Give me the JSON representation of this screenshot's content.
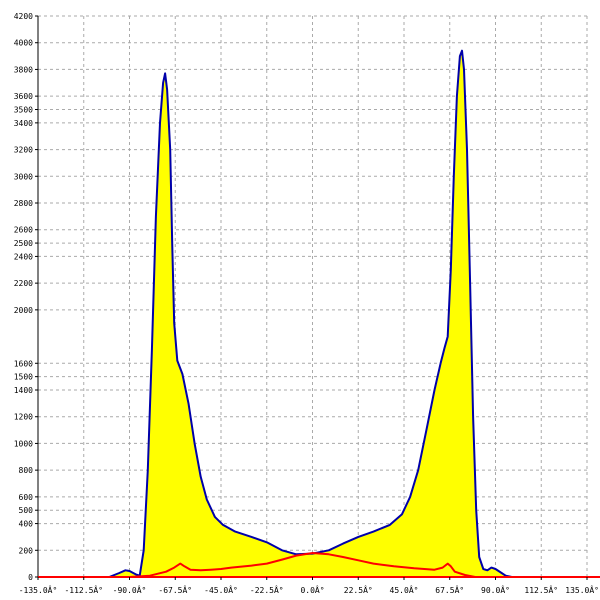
{
  "chart_data": {
    "type": "area",
    "title": "",
    "xlabel": "",
    "ylabel": "",
    "xlim": [
      -135,
      135
    ],
    "ylim": [
      0,
      4200
    ],
    "grid": true,
    "x_ticks": [
      -135,
      -112.5,
      -90,
      -67.5,
      -45,
      -22.5,
      0,
      22.5,
      45,
      67.5,
      90,
      112.5,
      135
    ],
    "x_tick_labels": [
      "-135.0Â°",
      "-112.5Â°",
      "-90.0Â°",
      "-67.5Â°",
      "-45.0Â°",
      "-22.5Â°",
      "0.0Â°",
      "22.5Â°",
      "45.0Â°",
      "67.5Â°",
      "90.0Â°",
      "112.5Â°",
      "135.0Â°"
    ],
    "y_ticks": [
      0,
      200,
      400,
      500,
      600,
      800,
      1000,
      1200,
      1400,
      1500,
      1600,
      2000,
      2200,
      2400,
      2500,
      2600,
      2800,
      3000,
      3200,
      3400,
      3500,
      3600,
      3800,
      4000,
      4200
    ],
    "series": [
      {
        "color": "#0000aa",
        "fill": "#ffff00",
        "points": [
          [
            -100,
            0
          ],
          [
            -95,
            30
          ],
          [
            -92,
            50
          ],
          [
            -90,
            45
          ],
          [
            -87,
            20
          ],
          [
            -85,
            10
          ],
          [
            -83,
            200
          ],
          [
            -81,
            800
          ],
          [
            -79,
            1700
          ],
          [
            -77,
            2700
          ],
          [
            -75,
            3400
          ],
          [
            -73.5,
            3700
          ],
          [
            -72.5,
            3770
          ],
          [
            -71.5,
            3650
          ],
          [
            -70,
            3200
          ],
          [
            -69,
            2500
          ],
          [
            -68,
            1900
          ],
          [
            -66.5,
            1620
          ],
          [
            -64,
            1520
          ],
          [
            -61,
            1300
          ],
          [
            -58,
            1000
          ],
          [
            -55,
            750
          ],
          [
            -52,
            580
          ],
          [
            -48,
            450
          ],
          [
            -44,
            390
          ],
          [
            -38,
            340
          ],
          [
            -30,
            300
          ],
          [
            -22.5,
            260
          ],
          [
            -15,
            200
          ],
          [
            -8,
            170
          ],
          [
            0,
            175
          ],
          [
            8,
            200
          ],
          [
            15,
            250
          ],
          [
            22.5,
            300
          ],
          [
            30,
            340
          ],
          [
            38,
            390
          ],
          [
            44,
            470
          ],
          [
            48,
            600
          ],
          [
            52,
            800
          ],
          [
            56,
            1100
          ],
          [
            60,
            1400
          ],
          [
            63,
            1600
          ],
          [
            65,
            1720
          ],
          [
            66.5,
            1800
          ],
          [
            68,
            2300
          ],
          [
            69.5,
            3000
          ],
          [
            71,
            3600
          ],
          [
            72.5,
            3900
          ],
          [
            73.5,
            3940
          ],
          [
            74.5,
            3800
          ],
          [
            76,
            3200
          ],
          [
            77.5,
            2200
          ],
          [
            79,
            1200
          ],
          [
            80.5,
            500
          ],
          [
            82,
            150
          ],
          [
            84,
            60
          ],
          [
            86,
            50
          ],
          [
            88,
            70
          ],
          [
            90,
            60
          ],
          [
            93,
            30
          ],
          [
            95,
            10
          ],
          [
            98,
            0
          ]
        ]
      },
      {
        "color": "#ff0000",
        "fill": "none",
        "points": [
          [
            -135,
            0
          ],
          [
            -90,
            0
          ],
          [
            -80,
            10
          ],
          [
            -72,
            40
          ],
          [
            -68,
            70
          ],
          [
            -65,
            100
          ],
          [
            -63,
            80
          ],
          [
            -60,
            55
          ],
          [
            -55,
            50
          ],
          [
            -50,
            55
          ],
          [
            -45,
            60
          ],
          [
            -40,
            70
          ],
          [
            -30,
            85
          ],
          [
            -22.5,
            100
          ],
          [
            -15,
            130
          ],
          [
            -8,
            160
          ],
          [
            0,
            180
          ],
          [
            8,
            170
          ],
          [
            15,
            150
          ],
          [
            22.5,
            125
          ],
          [
            30,
            100
          ],
          [
            40,
            80
          ],
          [
            50,
            65
          ],
          [
            60,
            55
          ],
          [
            64,
            70
          ],
          [
            66.5,
            100
          ],
          [
            68,
            80
          ],
          [
            70,
            40
          ],
          [
            75,
            15
          ],
          [
            80,
            0
          ],
          [
            135,
            0
          ]
        ]
      }
    ]
  }
}
